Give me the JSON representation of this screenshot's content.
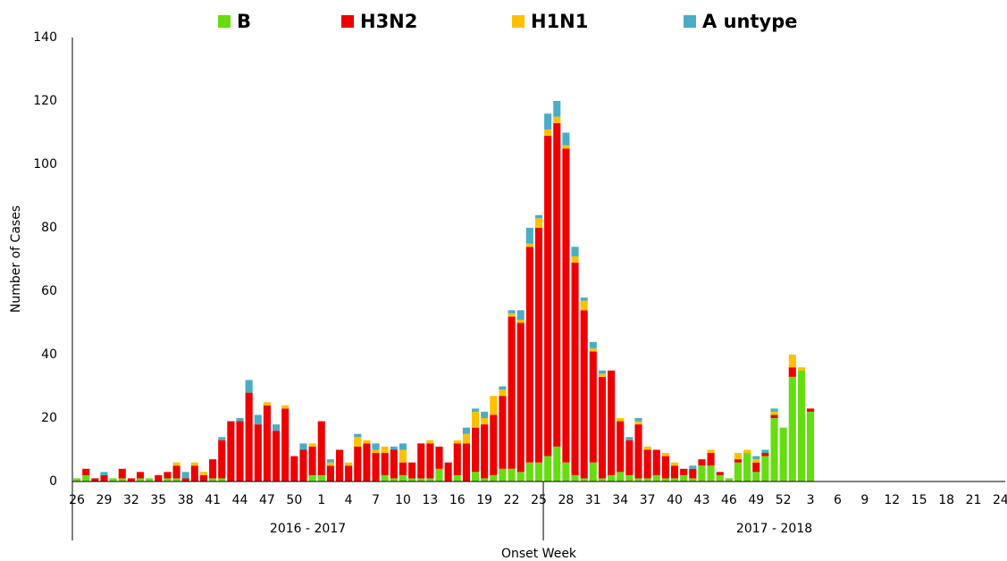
{
  "chart_data": {
    "type": "stacked_bar",
    "y_label": "Number of Cases",
    "x_label": "Onset Week",
    "categories": [
      26,
      null,
      null,
      29,
      null,
      null,
      32,
      null,
      null,
      35,
      null,
      null,
      38,
      null,
      null,
      41,
      null,
      null,
      44,
      null,
      null,
      47,
      null,
      null,
      50,
      null,
      null,
      1,
      null,
      null,
      4,
      null,
      null,
      7,
      null,
      null,
      10,
      null,
      null,
      13,
      null,
      null,
      16,
      null,
      null,
      19,
      null,
      null,
      22,
      null,
      null,
      25,
      null,
      null,
      28,
      null,
      null,
      31,
      null,
      null,
      34,
      null,
      null,
      37,
      null,
      null,
      40,
      null,
      null,
      43,
      null,
      null,
      46,
      null,
      null,
      49,
      null,
      null,
      52,
      null,
      null,
      3,
      null,
      null,
      6,
      null,
      null,
      9,
      null,
      null,
      12,
      null,
      null,
      15,
      null,
      null,
      18,
      null,
      null,
      21,
      null,
      null,
      24
    ],
    "x_groups": [
      {
        "label": "2016 - 2017",
        "span": 52
      },
      {
        "label": "2017 - 2018",
        "span": 51
      }
    ],
    "ylim": [
      0,
      140
    ],
    "yticks": [
      0,
      20,
      40,
      60,
      80,
      100,
      120,
      140
    ],
    "grid": false,
    "series": [
      {
        "name": "B",
        "color": "#66dd11",
        "values": [
          1,
          2,
          0,
          0,
          1,
          1,
          0,
          1,
          1,
          0,
          1,
          1,
          0,
          0,
          0,
          1,
          1,
          0,
          0,
          0,
          0,
          0,
          0,
          0,
          0,
          0,
          2,
          2,
          0,
          0,
          0,
          0,
          0,
          0,
          2,
          1,
          2,
          1,
          1,
          1,
          4,
          0,
          2,
          0,
          3,
          1,
          2,
          4,
          4,
          3,
          6,
          6,
          8,
          11,
          6,
          2,
          1,
          6,
          1,
          2,
          3,
          2,
          1,
          1,
          2,
          1,
          1,
          2,
          1,
          5,
          5,
          2,
          1,
          6,
          9,
          3,
          8,
          20,
          17,
          33,
          35,
          22,
          0,
          0,
          0,
          0,
          0,
          0,
          0,
          0,
          0,
          0,
          0,
          0,
          0,
          0,
          0,
          0,
          0,
          0,
          0,
          0,
          0
        ]
      },
      {
        "name": "H3N2",
        "color": "#ee0000",
        "values": [
          0,
          2,
          1,
          2,
          0,
          3,
          1,
          2,
          0,
          2,
          2,
          4,
          1,
          5,
          2,
          6,
          12,
          19,
          19,
          28,
          18,
          24,
          16,
          23,
          8,
          10,
          9,
          17,
          5,
          10,
          5,
          11,
          12,
          9,
          7,
          9,
          4,
          5,
          11,
          11,
          7,
          6,
          10,
          12,
          14,
          17,
          19,
          23,
          48,
          47,
          68,
          74,
          101,
          102,
          99,
          67,
          53,
          35,
          32,
          33,
          16,
          11,
          17,
          9,
          8,
          7,
          4,
          2,
          3,
          2,
          4,
          1,
          0,
          1,
          0,
          3,
          1,
          1,
          0,
          3,
          0,
          1,
          0,
          0,
          0,
          0,
          0,
          0,
          0,
          0,
          0,
          0,
          0,
          0,
          0,
          0,
          0,
          0,
          0,
          0,
          0,
          0,
          0
        ]
      },
      {
        "name": "H1N1",
        "color": "#ffc000",
        "values": [
          0,
          0,
          0,
          0,
          0,
          0,
          0,
          0,
          0,
          0,
          0,
          1,
          0,
          1,
          1,
          0,
          0,
          0,
          0,
          0,
          0,
          1,
          0,
          1,
          0,
          0,
          1,
          0,
          1,
          0,
          1,
          3,
          1,
          1,
          2,
          0,
          4,
          0,
          0,
          1,
          0,
          0,
          1,
          3,
          5,
          2,
          6,
          2,
          1,
          1,
          1,
          3,
          2,
          2,
          1,
          2,
          3,
          1,
          1,
          0,
          1,
          0,
          1,
          1,
          0,
          1,
          1,
          0,
          0,
          0,
          1,
          0,
          0,
          2,
          1,
          1,
          0,
          1,
          0,
          4,
          1,
          0,
          0,
          0,
          0,
          0,
          0,
          0,
          0,
          0,
          0,
          0,
          0,
          0,
          0,
          0,
          0,
          0,
          0,
          0,
          0,
          0,
          0
        ]
      },
      {
        "name": "A untype",
        "color": "#4bacc6",
        "values": [
          0,
          0,
          0,
          1,
          0,
          0,
          0,
          0,
          0,
          0,
          0,
          0,
          2,
          0,
          0,
          0,
          1,
          0,
          1,
          4,
          3,
          0,
          2,
          0,
          0,
          2,
          0,
          0,
          1,
          0,
          0,
          1,
          0,
          2,
          0,
          1,
          2,
          0,
          0,
          0,
          0,
          0,
          0,
          2,
          1,
          2,
          0,
          1,
          1,
          3,
          5,
          1,
          5,
          5,
          4,
          3,
          1,
          2,
          1,
          0,
          0,
          1,
          1,
          0,
          0,
          0,
          0,
          0,
          1,
          0,
          0,
          0,
          0,
          0,
          0,
          1,
          1,
          1,
          0,
          0,
          0,
          0,
          0,
          0,
          0,
          0,
          0,
          0,
          0,
          0,
          0,
          0,
          0,
          0,
          0,
          0,
          0,
          0,
          0,
          0,
          0,
          0,
          0
        ]
      }
    ]
  }
}
